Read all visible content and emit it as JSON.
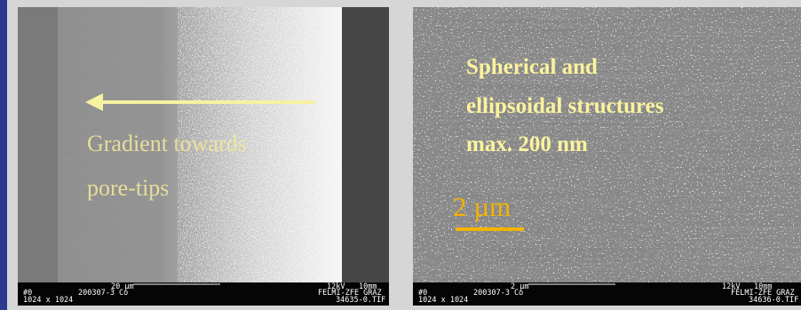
{
  "left_image": {
    "annotation": [
      "Gradient towards",
      "pore-tips"
    ],
    "footer": {
      "scale": "20 µm",
      "line1_left": "#0",
      "sample": "200307-3 Co",
      "resolution": "1024 x 1024",
      "voltage": "12kV",
      "distance": "10mm",
      "lab": "FELMI-ZFE GRAZ",
      "file": "34635-0.TIF"
    }
  },
  "right_image": {
    "annotation": [
      "Spherical and",
      "ellipsoidal structures",
      "max. 200 nm"
    ],
    "scale_label": "2 µm",
    "footer": {
      "scale": "2 µm",
      "line1_left": "#0",
      "sample": "200307-3 Co",
      "resolution": "1024 x 1024",
      "voltage": "12kV",
      "distance": "10mm",
      "lab": "FELMI-ZFE GRAZ",
      "file": "34636-0.TIF"
    }
  }
}
